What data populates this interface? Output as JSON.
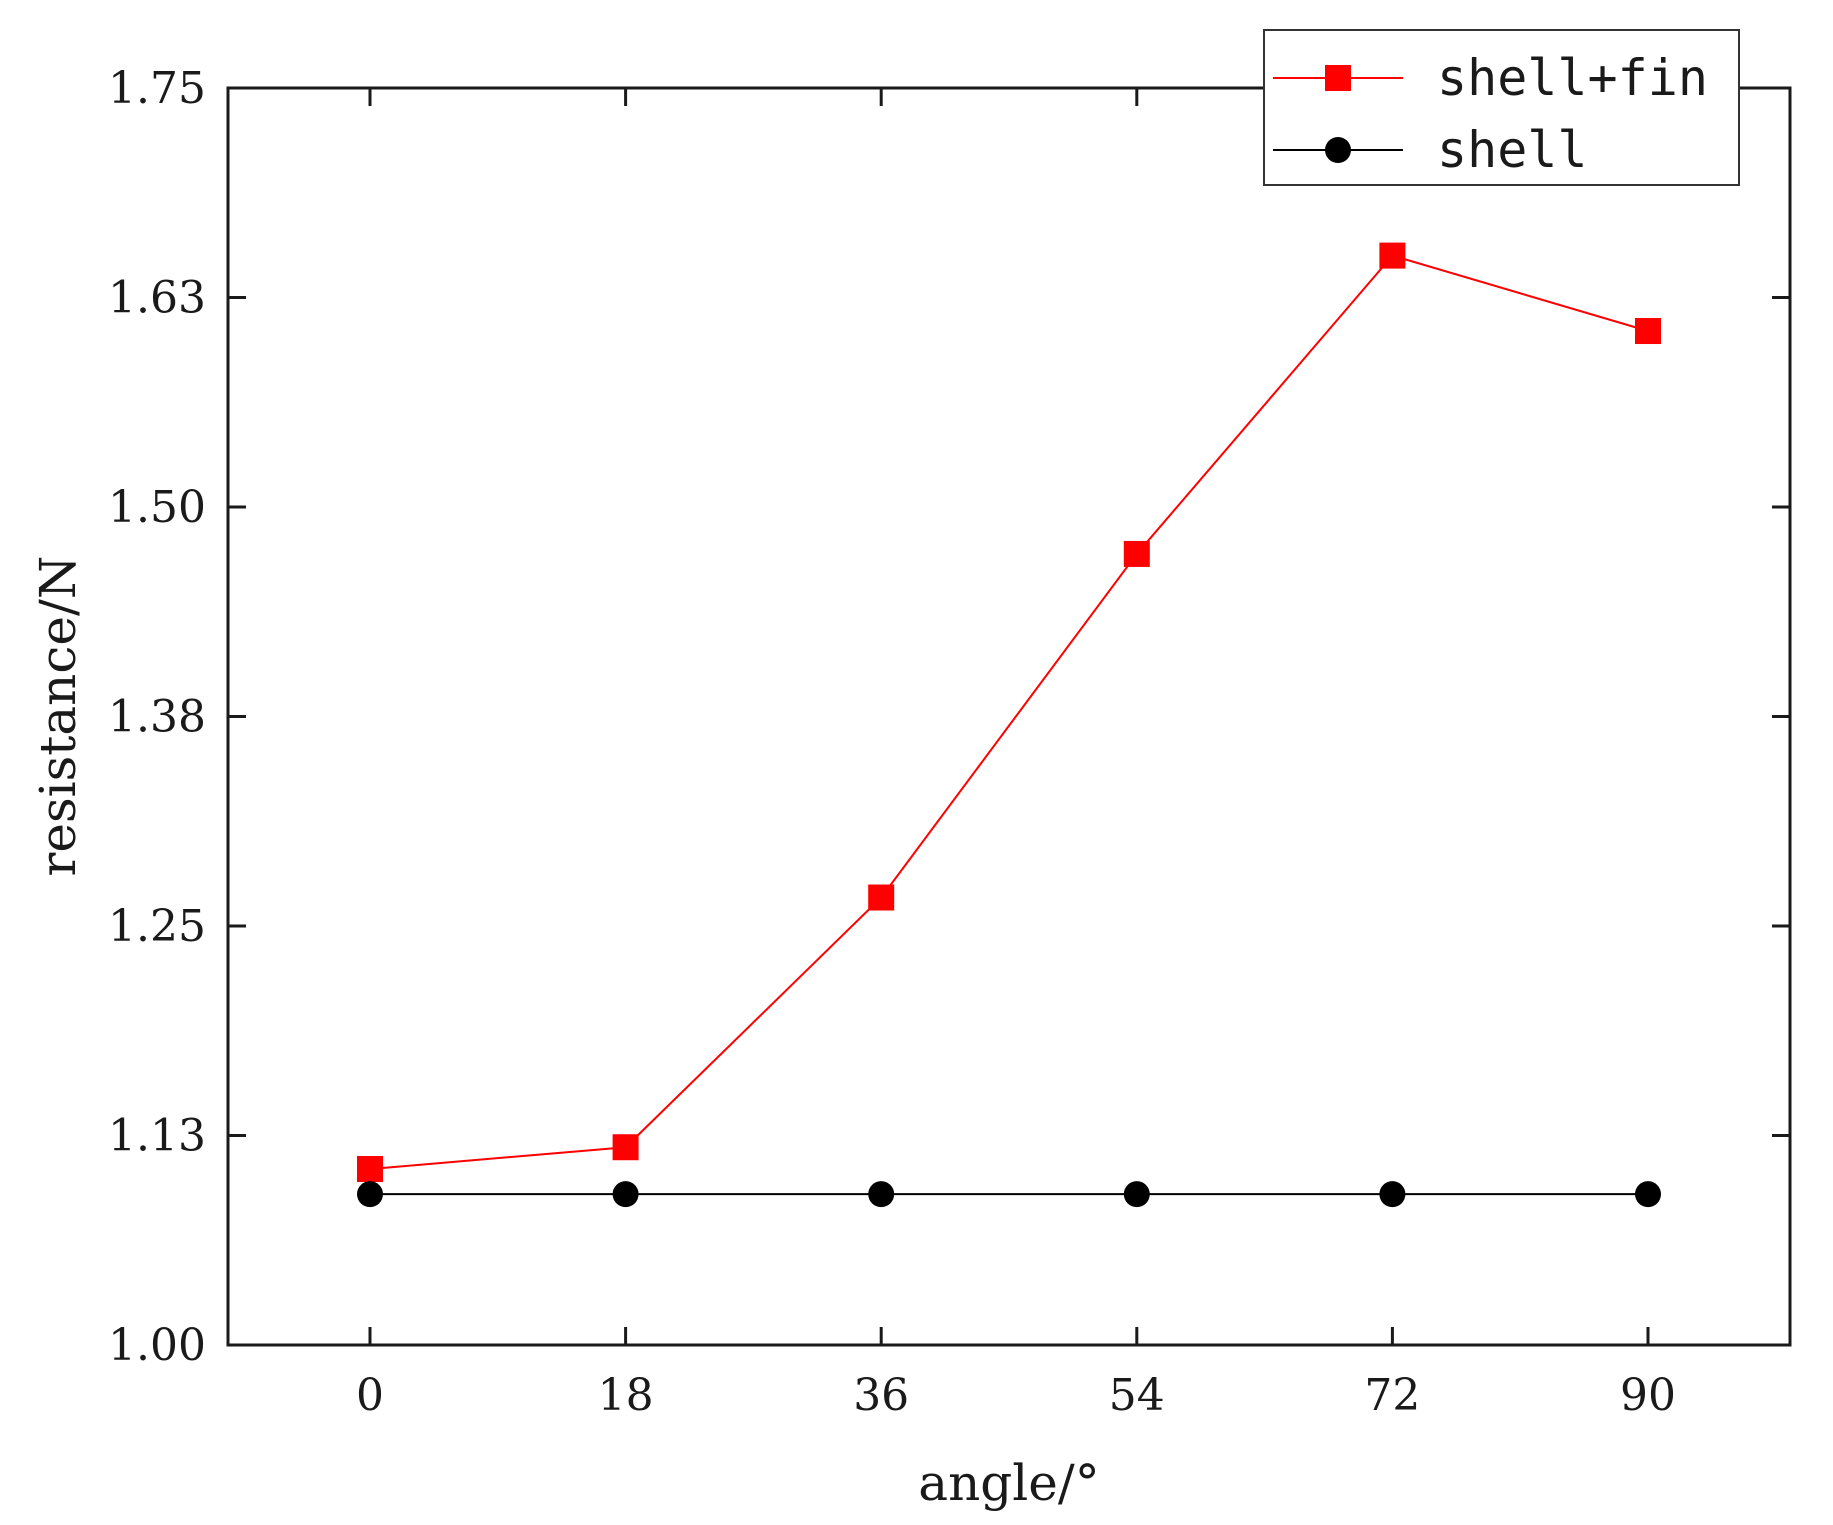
{
  "chart_data": {
    "type": "line",
    "title": "",
    "xlabel": "angle/°",
    "ylabel": "resistance/N",
    "x": [
      0,
      18,
      36,
      54,
      72,
      90
    ],
    "x_tick_labels": [
      "0",
      "18",
      "36",
      "54",
      "72",
      "90"
    ],
    "xlim": [
      -10,
      100
    ],
    "ylim": [
      1.0,
      1.75
    ],
    "y_ticks": [
      1.0,
      1.125,
      1.25,
      1.375,
      1.5,
      1.625,
      1.75
    ],
    "y_tick_labels": [
      "1.00",
      "1.13",
      "1.25",
      "1.38",
      "1.50",
      "1.63",
      "1.75"
    ],
    "grid": false,
    "legend_position": "top-right",
    "series": [
      {
        "name": "shell+fin",
        "values": [
          1.105,
          1.118,
          1.267,
          1.472,
          1.65,
          1.605
        ],
        "color": "#ff0000",
        "marker": "square"
      },
      {
        "name": "shell",
        "values": [
          1.09,
          1.09,
          1.09,
          1.09,
          1.09,
          1.09
        ],
        "color": "#000000",
        "marker": "circle"
      }
    ]
  }
}
